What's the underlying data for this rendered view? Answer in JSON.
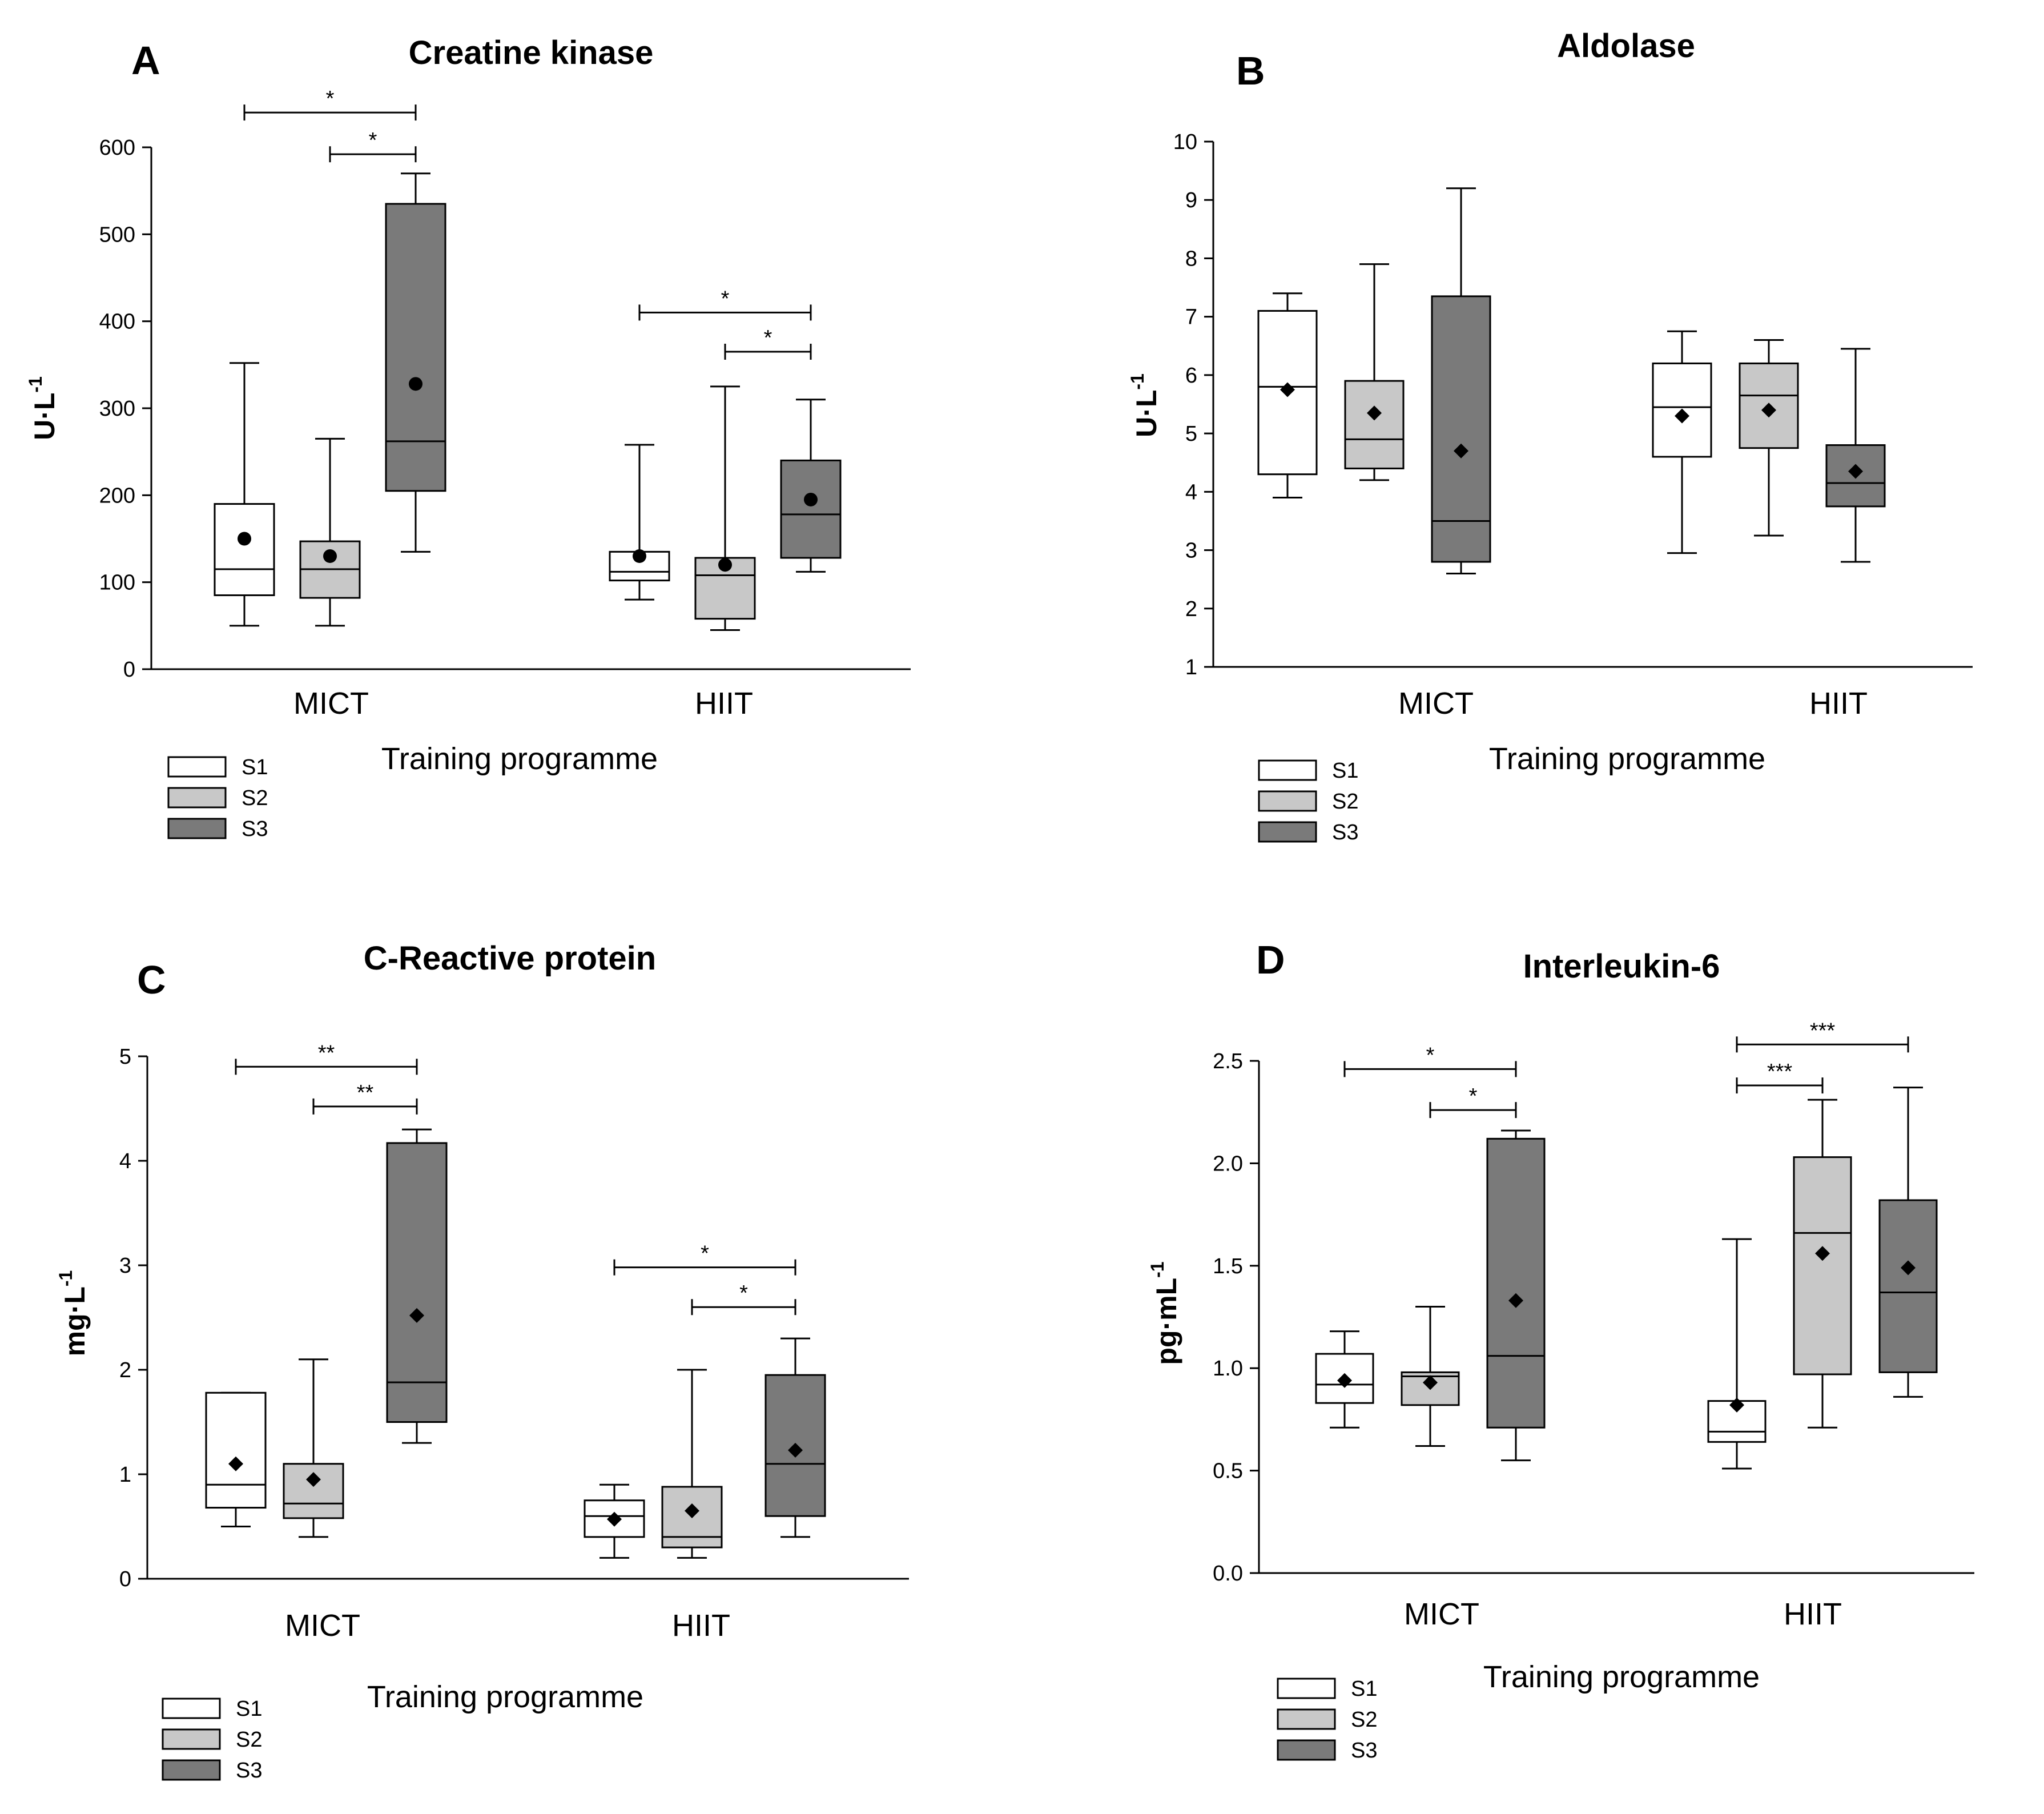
{
  "colors": {
    "S1": "#ffffff",
    "S2": "#c8c8c8",
    "S3": "#7a7a7a",
    "stroke": "#000000"
  },
  "chart_data": [
    {
      "type": "box",
      "panel": "A",
      "title": "Creatine kinase",
      "ylabel_base": "U·L",
      "ylabel_exp": "-1",
      "xlabel": "Training programme",
      "ylim": [
        0,
        600
      ],
      "yticks": [
        "0",
        "100",
        "200",
        "300",
        "400",
        "500",
        "600"
      ],
      "categories": [
        "MICT",
        "HIIT"
      ],
      "legend": [
        "S1",
        "S2",
        "S3"
      ],
      "series": [
        {
          "name": "S1",
          "boxes": [
            {
              "min": 50,
              "q1": 85,
              "median": 115,
              "q3": 190,
              "max": 352,
              "mean": 150
            },
            {
              "min": 80,
              "q1": 102,
              "median": 112,
              "q3": 135,
              "max": 258,
              "mean": 130
            }
          ]
        },
        {
          "name": "S2",
          "boxes": [
            {
              "min": 50,
              "q1": 82,
              "median": 115,
              "q3": 147,
              "max": 265,
              "mean": 130
            },
            {
              "min": 45,
              "q1": 58,
              "median": 108,
              "q3": 128,
              "max": 325,
              "mean": 120
            }
          ]
        },
        {
          "name": "S3",
          "boxes": [
            {
              "min": 135,
              "q1": 205,
              "median": 262,
              "q3": 535,
              "max": 570,
              "mean": 328
            },
            {
              "min": 112,
              "q1": 128,
              "median": 178,
              "q3": 240,
              "max": 310,
              "mean": 195
            }
          ]
        }
      ],
      "significance": [
        {
          "group": 0,
          "from": 0,
          "to": 2,
          "label": "*",
          "y": 640
        },
        {
          "group": 0,
          "from": 1,
          "to": 2,
          "label": "*",
          "y": 592
        },
        {
          "group": 1,
          "from": 0,
          "to": 2,
          "label": "*",
          "y": 410
        },
        {
          "group": 1,
          "from": 1,
          "to": 2,
          "label": "*",
          "y": 365
        }
      ]
    },
    {
      "type": "box",
      "panel": "B",
      "title": "Aldolase",
      "ylabel_base": "U·L",
      "ylabel_exp": "-1",
      "xlabel": "Training programme",
      "ylim": [
        1,
        10
      ],
      "yticks": [
        "1",
        "2",
        "3",
        "4",
        "5",
        "6",
        "7",
        "8",
        "9",
        "10"
      ],
      "categories": [
        "MICT",
        "HIIT"
      ],
      "legend": [
        "S1",
        "S2",
        "S3"
      ],
      "series": [
        {
          "name": "S1",
          "boxes": [
            {
              "min": 3.9,
              "q1": 4.3,
              "median": 5.8,
              "q3": 7.1,
              "max": 7.4,
              "mean": 5.75
            },
            {
              "min": 2.95,
              "q1": 4.6,
              "median": 5.45,
              "q3": 6.2,
              "max": 6.75,
              "mean": 5.3
            }
          ]
        },
        {
          "name": "S2",
          "boxes": [
            {
              "min": 4.2,
              "q1": 4.4,
              "median": 4.9,
              "q3": 5.9,
              "max": 7.9,
              "mean": 5.35
            },
            {
              "min": 3.25,
              "q1": 4.75,
              "median": 5.65,
              "q3": 6.2,
              "max": 6.6,
              "mean": 5.4
            }
          ]
        },
        {
          "name": "S3",
          "boxes": [
            {
              "min": 2.6,
              "q1": 2.8,
              "median": 3.5,
              "q3": 7.35,
              "max": 9.2,
              "mean": 4.7
            },
            {
              "min": 2.8,
              "q1": 3.75,
              "median": 4.15,
              "q3": 4.8,
              "max": 6.45,
              "mean": 4.35
            }
          ]
        }
      ],
      "significance": []
    },
    {
      "type": "box",
      "panel": "C",
      "title": "C-Reactive protein",
      "ylabel_base": "mg·L",
      "ylabel_exp": "-1",
      "xlabel": "Training programme",
      "ylim": [
        0,
        5
      ],
      "yticks": [
        "0",
        "1",
        "2",
        "3",
        "4",
        "5"
      ],
      "categories": [
        "MICT",
        "HIIT"
      ],
      "legend": [
        "S1",
        "S2",
        "S3"
      ],
      "series": [
        {
          "name": "S1",
          "boxes": [
            {
              "min": 0.5,
              "q1": 0.68,
              "median": 0.9,
              "q3": 1.78,
              "max": 1.78,
              "mean": 1.1
            },
            {
              "min": 0.2,
              "q1": 0.4,
              "median": 0.6,
              "q3": 0.75,
              "max": 0.9,
              "mean": 0.57
            }
          ]
        },
        {
          "name": "S2",
          "boxes": [
            {
              "min": 0.4,
              "q1": 0.58,
              "median": 0.72,
              "q3": 1.1,
              "max": 2.1,
              "mean": 0.95
            },
            {
              "min": 0.2,
              "q1": 0.3,
              "median": 0.4,
              "q3": 0.88,
              "max": 2.0,
              "mean": 0.65
            }
          ]
        },
        {
          "name": "S3",
          "boxes": [
            {
              "min": 1.3,
              "q1": 1.5,
              "median": 1.88,
              "q3": 4.17,
              "max": 4.3,
              "mean": 2.52
            },
            {
              "min": 0.4,
              "q1": 0.6,
              "median": 1.1,
              "q3": 1.95,
              "max": 2.3,
              "mean": 1.23
            }
          ]
        }
      ],
      "significance": [
        {
          "group": 0,
          "from": 0,
          "to": 2,
          "label": "**",
          "y": 4.9
        },
        {
          "group": 0,
          "from": 1,
          "to": 2,
          "label": "**",
          "y": 4.52
        },
        {
          "group": 1,
          "from": 0,
          "to": 2,
          "label": "*",
          "y": 2.98
        },
        {
          "group": 1,
          "from": 1,
          "to": 2,
          "label": "*",
          "y": 2.6
        }
      ]
    },
    {
      "type": "box",
      "panel": "D",
      "title": "Interleukin-6",
      "ylabel_base": "pg·mL",
      "ylabel_exp": "-1",
      "xlabel": "Training programme",
      "ylim": [
        0,
        2.5
      ],
      "yticks": [
        "0.0",
        "0.5",
        "1.0",
        "1.5",
        "2.0",
        "2.5"
      ],
      "categories": [
        "MICT",
        "HIIT"
      ],
      "legend": [
        "S1",
        "S2",
        "S3"
      ],
      "series": [
        {
          "name": "S1",
          "boxes": [
            {
              "min": 0.71,
              "q1": 0.83,
              "median": 0.92,
              "q3": 1.07,
              "max": 1.18,
              "mean": 0.94
            },
            {
              "min": 0.51,
              "q1": 0.64,
              "median": 0.69,
              "q3": 0.84,
              "max": 1.63,
              "mean": 0.82
            }
          ]
        },
        {
          "name": "S2",
          "boxes": [
            {
              "min": 0.62,
              "q1": 0.82,
              "median": 0.96,
              "q3": 0.98,
              "max": 1.3,
              "mean": 0.93
            },
            {
              "min": 0.71,
              "q1": 0.97,
              "median": 1.66,
              "q3": 2.03,
              "max": 2.31,
              "mean": 1.56
            }
          ]
        },
        {
          "name": "S3",
          "boxes": [
            {
              "min": 0.55,
              "q1": 0.71,
              "median": 1.06,
              "q3": 2.12,
              "max": 2.16,
              "mean": 1.33
            },
            {
              "min": 0.86,
              "q1": 0.98,
              "median": 1.37,
              "q3": 1.82,
              "max": 2.37,
              "mean": 1.49
            }
          ]
        }
      ],
      "significance": [
        {
          "group": 0,
          "from": 0,
          "to": 2,
          "label": "*",
          "y": 2.46
        },
        {
          "group": 0,
          "from": 1,
          "to": 2,
          "label": "*",
          "y": 2.26
        },
        {
          "group": 1,
          "from": 0,
          "to": 2,
          "label": "***",
          "y": 2.58
        },
        {
          "group": 1,
          "from": 0,
          "to": 1,
          "label": "***",
          "y": 2.38
        }
      ]
    }
  ]
}
